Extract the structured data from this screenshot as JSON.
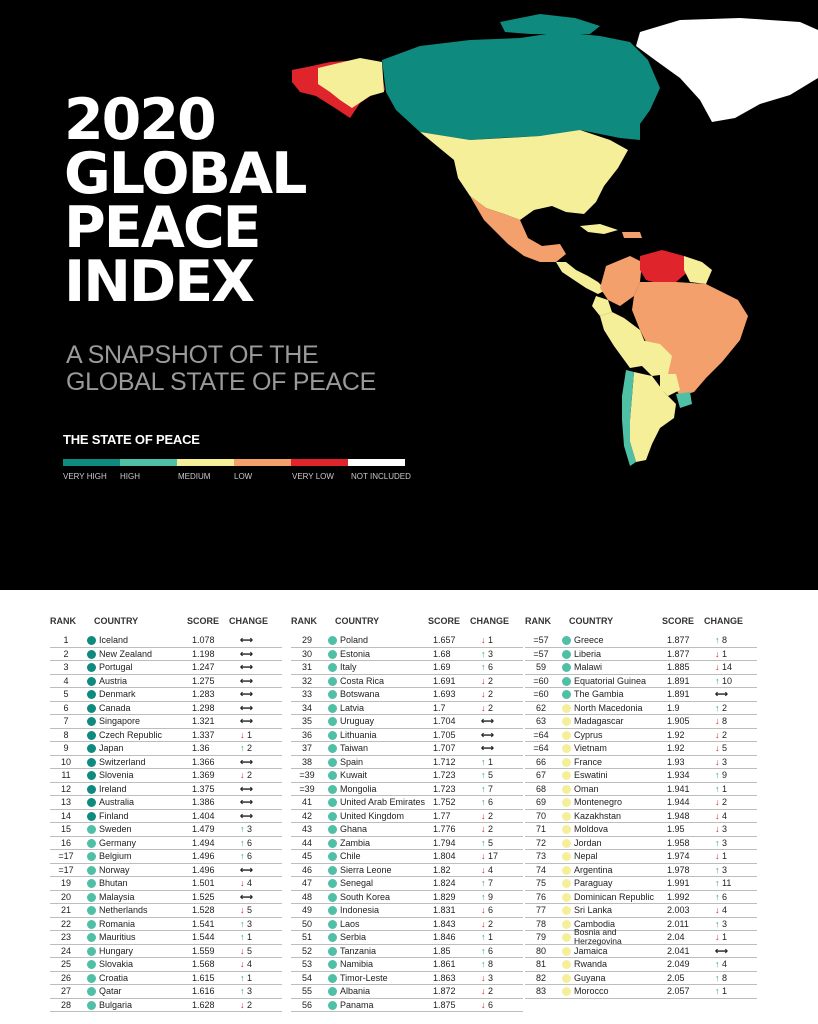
{
  "header": {
    "title_lines": [
      "2020",
      "GLOBAL",
      "PEACE",
      "INDEX"
    ],
    "subtitle_lines": [
      "A SNAPSHOT OF THE",
      "GLOBAL STATE OF PEACE"
    ]
  },
  "legend": {
    "title": "THE STATE OF PEACE",
    "items": [
      {
        "label": "VERY HIGH",
        "color": "#0f8a7e"
      },
      {
        "label": "HIGH",
        "color": "#4fbfa5"
      },
      {
        "label": "MEDIUM",
        "color": "#f6ef9a"
      },
      {
        "label": "LOW",
        "color": "#f4a06c"
      },
      {
        "label": "VERY LOW",
        "color": "#e0242b"
      },
      {
        "label": "NOT INCLUDED",
        "color": "#ffffff"
      }
    ]
  },
  "table": {
    "headers": {
      "rank": "RANK",
      "country": "COUNTRY",
      "score": "SCORE",
      "change": "CHANGE"
    },
    "columns": [
      [
        {
          "rank": "1",
          "country": "Iceland",
          "score": "1.078",
          "dir": "same",
          "n": "",
          "level": "very-high"
        },
        {
          "rank": "2",
          "country": "New Zealand",
          "score": "1.198",
          "dir": "same",
          "n": "",
          "level": "very-high"
        },
        {
          "rank": "3",
          "country": "Portugal",
          "score": "1.247",
          "dir": "same",
          "n": "",
          "level": "very-high"
        },
        {
          "rank": "4",
          "country": "Austria",
          "score": "1.275",
          "dir": "same",
          "n": "",
          "level": "very-high"
        },
        {
          "rank": "5",
          "country": "Denmark",
          "score": "1.283",
          "dir": "same",
          "n": "",
          "level": "very-high"
        },
        {
          "rank": "6",
          "country": "Canada",
          "score": "1.298",
          "dir": "same",
          "n": "",
          "level": "very-high"
        },
        {
          "rank": "7",
          "country": "Singapore",
          "score": "1.321",
          "dir": "same",
          "n": "",
          "level": "very-high"
        },
        {
          "rank": "8",
          "country": "Czech Republic",
          "score": "1.337",
          "dir": "down",
          "n": "1",
          "level": "very-high"
        },
        {
          "rank": "9",
          "country": "Japan",
          "score": "1.36",
          "dir": "up",
          "n": "2",
          "level": "very-high"
        },
        {
          "rank": "10",
          "country": "Switzerland",
          "score": "1.366",
          "dir": "same",
          "n": "",
          "level": "very-high"
        },
        {
          "rank": "11",
          "country": "Slovenia",
          "score": "1.369",
          "dir": "down",
          "n": "2",
          "level": "very-high"
        },
        {
          "rank": "12",
          "country": "Ireland",
          "score": "1.375",
          "dir": "same",
          "n": "",
          "level": "very-high"
        },
        {
          "rank": "13",
          "country": "Australia",
          "score": "1.386",
          "dir": "same",
          "n": "",
          "level": "very-high"
        },
        {
          "rank": "14",
          "country": "Finland",
          "score": "1.404",
          "dir": "same",
          "n": "",
          "level": "very-high"
        },
        {
          "rank": "15",
          "country": "Sweden",
          "score": "1.479",
          "dir": "up",
          "n": "3",
          "level": "high"
        },
        {
          "rank": "16",
          "country": "Germany",
          "score": "1.494",
          "dir": "up",
          "n": "6",
          "level": "high"
        },
        {
          "rank": "=17",
          "country": "Belgium",
          "score": "1.496",
          "dir": "up",
          "n": "6",
          "level": "high"
        },
        {
          "rank": "=17",
          "country": "Norway",
          "score": "1.496",
          "dir": "same",
          "n": "",
          "level": "high"
        },
        {
          "rank": "19",
          "country": "Bhutan",
          "score": "1.501",
          "dir": "down",
          "n": "4",
          "level": "high"
        },
        {
          "rank": "20",
          "country": "Malaysia",
          "score": "1.525",
          "dir": "same",
          "n": "",
          "level": "high"
        },
        {
          "rank": "21",
          "country": "Netherlands",
          "score": "1.528",
          "dir": "down",
          "n": "5",
          "level": "high"
        },
        {
          "rank": "22",
          "country": "Romania",
          "score": "1.541",
          "dir": "up",
          "n": "3",
          "level": "high"
        },
        {
          "rank": "23",
          "country": "Mauritius",
          "score": "1.544",
          "dir": "up",
          "n": "1",
          "level": "high"
        },
        {
          "rank": "24",
          "country": "Hungary",
          "score": "1.559",
          "dir": "down",
          "n": "5",
          "level": "high"
        },
        {
          "rank": "25",
          "country": "Slovakia",
          "score": "1.568",
          "dir": "down",
          "n": "4",
          "level": "high"
        },
        {
          "rank": "26",
          "country": "Croatia",
          "score": "1.615",
          "dir": "up",
          "n": "1",
          "level": "high"
        },
        {
          "rank": "27",
          "country": "Qatar",
          "score": "1.616",
          "dir": "up",
          "n": "3",
          "level": "high"
        },
        {
          "rank": "28",
          "country": "Bulgaria",
          "score": "1.628",
          "dir": "down",
          "n": "2",
          "level": "high"
        }
      ],
      [
        {
          "rank": "29",
          "country": "Poland",
          "score": "1.657",
          "dir": "down",
          "n": "1",
          "level": "high"
        },
        {
          "rank": "30",
          "country": "Estonia",
          "score": "1.68",
          "dir": "up",
          "n": "3",
          "level": "high"
        },
        {
          "rank": "31",
          "country": "Italy",
          "score": "1.69",
          "dir": "up",
          "n": "6",
          "level": "high"
        },
        {
          "rank": "32",
          "country": "Costa Rica",
          "score": "1.691",
          "dir": "down",
          "n": "2",
          "level": "high"
        },
        {
          "rank": "33",
          "country": "Botswana",
          "score": "1.693",
          "dir": "down",
          "n": "2",
          "level": "high"
        },
        {
          "rank": "34",
          "country": "Latvia",
          "score": "1.7",
          "dir": "down",
          "n": "2",
          "level": "high"
        },
        {
          "rank": "35",
          "country": "Uruguay",
          "score": "1.704",
          "dir": "same",
          "n": "",
          "level": "high"
        },
        {
          "rank": "36",
          "country": "Lithuania",
          "score": "1.705",
          "dir": "same",
          "n": "",
          "level": "high"
        },
        {
          "rank": "37",
          "country": "Taiwan",
          "score": "1.707",
          "dir": "same",
          "n": "",
          "level": "high"
        },
        {
          "rank": "38",
          "country": "Spain",
          "score": "1.712",
          "dir": "up",
          "n": "1",
          "level": "high"
        },
        {
          "rank": "=39",
          "country": "Kuwait",
          "score": "1.723",
          "dir": "up",
          "n": "5",
          "level": "high"
        },
        {
          "rank": "=39",
          "country": "Mongolia",
          "score": "1.723",
          "dir": "up",
          "n": "7",
          "level": "high"
        },
        {
          "rank": "41",
          "country": "United Arab Emirates",
          "score": "1.752",
          "dir": "up",
          "n": "6",
          "level": "high"
        },
        {
          "rank": "42",
          "country": "United Kingdom",
          "score": "1.77",
          "dir": "down",
          "n": "2",
          "level": "high"
        },
        {
          "rank": "43",
          "country": "Ghana",
          "score": "1.776",
          "dir": "down",
          "n": "2",
          "level": "high"
        },
        {
          "rank": "44",
          "country": "Zambia",
          "score": "1.794",
          "dir": "up",
          "n": "5",
          "level": "high"
        },
        {
          "rank": "45",
          "country": "Chile",
          "score": "1.804",
          "dir": "down",
          "n": "17",
          "level": "high"
        },
        {
          "rank": "46",
          "country": "Sierra Leone",
          "score": "1.82",
          "dir": "down",
          "n": "4",
          "level": "high"
        },
        {
          "rank": "47",
          "country": "Senegal",
          "score": "1.824",
          "dir": "up",
          "n": "7",
          "level": "high"
        },
        {
          "rank": "48",
          "country": "South Korea",
          "score": "1.829",
          "dir": "up",
          "n": "9",
          "level": "high"
        },
        {
          "rank": "49",
          "country": "Indonesia",
          "score": "1.831",
          "dir": "down",
          "n": "6",
          "level": "high"
        },
        {
          "rank": "50",
          "country": "Laos",
          "score": "1.843",
          "dir": "down",
          "n": "2",
          "level": "high"
        },
        {
          "rank": "51",
          "country": "Serbia",
          "score": "1.846",
          "dir": "up",
          "n": "1",
          "level": "high"
        },
        {
          "rank": "52",
          "country": "Tanzania",
          "score": "1.85",
          "dir": "up",
          "n": "6",
          "level": "high"
        },
        {
          "rank": "53",
          "country": "Namibia",
          "score": "1.861",
          "dir": "up",
          "n": "8",
          "level": "high"
        },
        {
          "rank": "54",
          "country": "Timor-Leste",
          "score": "1.863",
          "dir": "down",
          "n": "3",
          "level": "high"
        },
        {
          "rank": "55",
          "country": "Albania",
          "score": "1.872",
          "dir": "down",
          "n": "2",
          "level": "high"
        },
        {
          "rank": "56",
          "country": "Panama",
          "score": "1.875",
          "dir": "down",
          "n": "6",
          "level": "high"
        }
      ],
      [
        {
          "rank": "=57",
          "country": "Greece",
          "score": "1.877",
          "dir": "up",
          "n": "8",
          "level": "high"
        },
        {
          "rank": "=57",
          "country": "Liberia",
          "score": "1.877",
          "dir": "down",
          "n": "1",
          "level": "high"
        },
        {
          "rank": "59",
          "country": "Malawi",
          "score": "1.885",
          "dir": "down",
          "n": "14",
          "level": "high"
        },
        {
          "rank": "=60",
          "country": "Equatorial Guinea",
          "score": "1.891",
          "dir": "up",
          "n": "10",
          "level": "high"
        },
        {
          "rank": "=60",
          "country": "The Gambia",
          "score": "1.891",
          "dir": "same",
          "n": "",
          "level": "high"
        },
        {
          "rank": "62",
          "country": "North Macedonia",
          "score": "1.9",
          "dir": "up",
          "n": "2",
          "level": "medium"
        },
        {
          "rank": "63",
          "country": "Madagascar",
          "score": "1.905",
          "dir": "down",
          "n": "8",
          "level": "medium"
        },
        {
          "rank": "=64",
          "country": "Cyprus",
          "score": "1.92",
          "dir": "down",
          "n": "2",
          "level": "medium"
        },
        {
          "rank": "=64",
          "country": "Vietnam",
          "score": "1.92",
          "dir": "down",
          "n": "5",
          "level": "medium"
        },
        {
          "rank": "66",
          "country": "France",
          "score": "1.93",
          "dir": "down",
          "n": "3",
          "level": "medium"
        },
        {
          "rank": "67",
          "country": "Eswatini",
          "score": "1.934",
          "dir": "up",
          "n": "9",
          "level": "medium"
        },
        {
          "rank": "68",
          "country": "Oman",
          "score": "1.941",
          "dir": "up",
          "n": "1",
          "level": "medium"
        },
        {
          "rank": "69",
          "country": "Montenegro",
          "score": "1.944",
          "dir": "down",
          "n": "2",
          "level": "medium"
        },
        {
          "rank": "70",
          "country": "Kazakhstan",
          "score": "1.948",
          "dir": "down",
          "n": "4",
          "level": "medium"
        },
        {
          "rank": "71",
          "country": "Moldova",
          "score": "1.95",
          "dir": "down",
          "n": "3",
          "level": "medium"
        },
        {
          "rank": "72",
          "country": "Jordan",
          "score": "1.958",
          "dir": "up",
          "n": "3",
          "level": "medium"
        },
        {
          "rank": "73",
          "country": "Nepal",
          "score": "1.974",
          "dir": "down",
          "n": "1",
          "level": "medium"
        },
        {
          "rank": "74",
          "country": "Argentina",
          "score": "1.978",
          "dir": "up",
          "n": "3",
          "level": "medium"
        },
        {
          "rank": "75",
          "country": "Paraguay",
          "score": "1.991",
          "dir": "up",
          "n": "11",
          "level": "medium"
        },
        {
          "rank": "76",
          "country": "Dominican Republic",
          "score": "1.992",
          "dir": "up",
          "n": "6",
          "level": "medium"
        },
        {
          "rank": "77",
          "country": "Sri Lanka",
          "score": "2.003",
          "dir": "down",
          "n": "4",
          "level": "medium"
        },
        {
          "rank": "78",
          "country": "Cambodia",
          "score": "2.011",
          "dir": "up",
          "n": "3",
          "level": "medium"
        },
        {
          "rank": "79",
          "country": "Bosnia and Herzegovina",
          "score": "2.04",
          "dir": "down",
          "n": "1",
          "level": "medium",
          "two_line": true
        },
        {
          "rank": "80",
          "country": "Jamaica",
          "score": "2.041",
          "dir": "same",
          "n": "",
          "level": "medium"
        },
        {
          "rank": "81",
          "country": "Rwanda",
          "score": "2.049",
          "dir": "up",
          "n": "4",
          "level": "medium"
        },
        {
          "rank": "82",
          "country": "Guyana",
          "score": "2.05",
          "dir": "up",
          "n": "8",
          "level": "medium"
        },
        {
          "rank": "83",
          "country": "Morocco",
          "score": "2.057",
          "dir": "up",
          "n": "1",
          "level": "medium"
        }
      ]
    ]
  }
}
